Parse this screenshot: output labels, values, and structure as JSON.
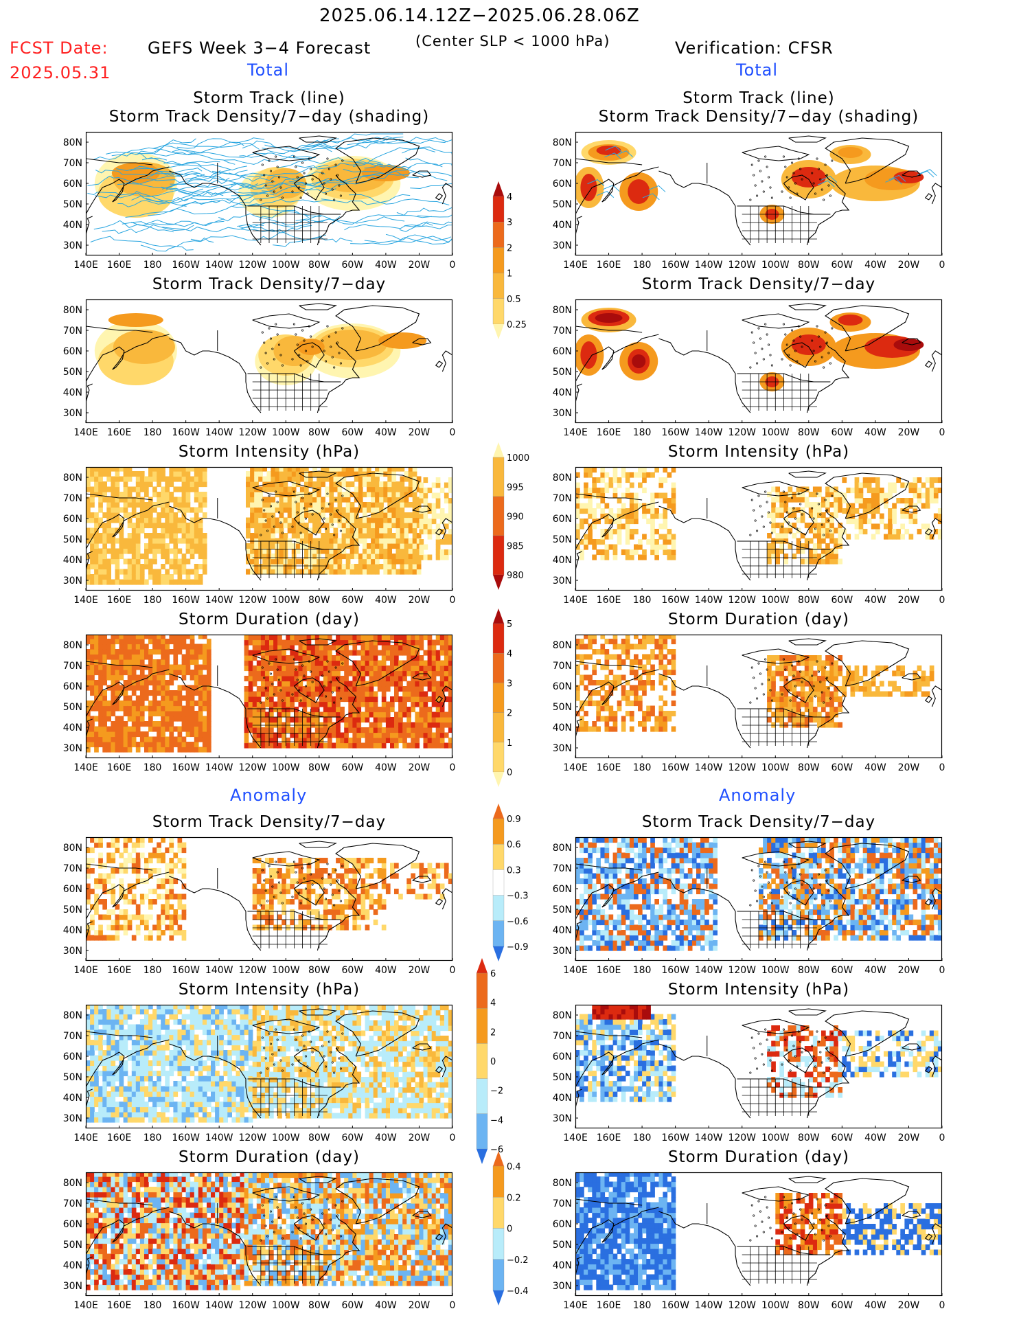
{
  "header": {
    "date_range": "2025.06.14.12Z−2025.06.28.06Z",
    "fcst_label": "FCST Date:",
    "fcst_date": "2025.05.31",
    "model": "GEFS Week 3−4 Forecast",
    "criterion": "(Center SLP < 1000 hPa)",
    "verification": "Verification: CFSR",
    "left_total": "Total",
    "right_total": "Total",
    "left_anomaly": "Anomaly",
    "right_anomaly": "Anomaly"
  },
  "panels": {
    "track_line_title": "Storm Track (line)",
    "track_shading_title": "Storm Track Density/7−day (shading)",
    "density_title": "Storm Track Density/7−day",
    "intensity_title": "Storm Intensity (hPa)",
    "duration_title": "Storm Duration (day)"
  },
  "axes": {
    "lon_labels": [
      "140E",
      "160E",
      "180",
      "160W",
      "140W",
      "120W",
      "100W",
      "80W",
      "60W",
      "40W",
      "20W",
      "0"
    ],
    "lat_labels": [
      "80N",
      "70N",
      "60N",
      "50N",
      "40N",
      "30N"
    ]
  },
  "colorbars": {
    "density_total": [
      "4",
      "3",
      "2",
      "1",
      "0.5",
      "0.25"
    ],
    "intensity_total": [
      "1000",
      "995",
      "990",
      "985",
      "980"
    ],
    "duration_total": [
      "5",
      "4",
      "3",
      "2",
      "1",
      "0"
    ],
    "density_anom": [
      "0.9",
      "0.6",
      "0.3",
      "−0.3",
      "−0.6",
      "−0.9"
    ],
    "intensity_anom": [
      "6",
      "4",
      "2",
      "0",
      "−2",
      "−4",
      "−6"
    ],
    "duration_anom": [
      "0.4",
      "0.2",
      "0",
      "−0.2",
      "−0.4"
    ]
  },
  "colors": {
    "light_yellow": "#fff5b0",
    "yellow": "#ffd86a",
    "orange_light": "#f9b83c",
    "orange": "#f59a1e",
    "dark_orange": "#ec6a1c",
    "red": "#dc2a10",
    "dark_red": "#a90c0c",
    "light_blue": "#b8ecfa",
    "mid_blue": "#6cb4f2",
    "blue": "#2a6fe0",
    "track_line": "#2aa6e0"
  }
}
